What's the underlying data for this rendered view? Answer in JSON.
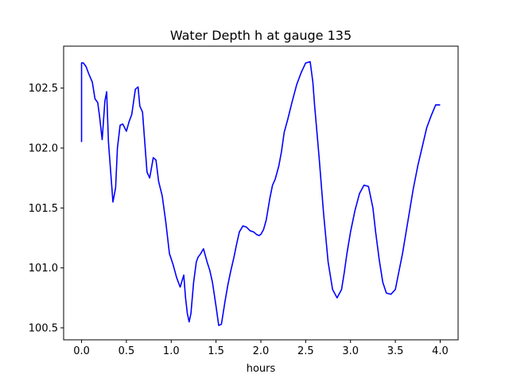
{
  "chart_data": {
    "type": "line",
    "title": "Water Depth h at gauge 135",
    "xlabel": "hours",
    "ylabel": "",
    "xlim": [
      -0.2,
      4.2
    ],
    "ylim": [
      100.4,
      102.85
    ],
    "xticks": [
      0.0,
      0.5,
      1.0,
      1.5,
      2.0,
      2.5,
      3.0,
      3.5,
      4.0
    ],
    "xtick_labels": [
      "0.0",
      "0.5",
      "1.0",
      "1.5",
      "2.0",
      "2.5",
      "3.0",
      "3.5",
      "4.0"
    ],
    "yticks": [
      100.5,
      101.0,
      101.5,
      102.0,
      102.5
    ],
    "ytick_labels": [
      "100.5",
      "101.0",
      "101.5",
      "102.0",
      "102.5"
    ],
    "grid": false,
    "series": [
      {
        "color": "#0000ff",
        "x": [
          0.0,
          0.0,
          0.02,
          0.05,
          0.08,
          0.12,
          0.15,
          0.18,
          0.2,
          0.23,
          0.26,
          0.28,
          0.3,
          0.32,
          0.35,
          0.38,
          0.4,
          0.43,
          0.46,
          0.5,
          0.53,
          0.56,
          0.6,
          0.63,
          0.65,
          0.68,
          0.7,
          0.73,
          0.76,
          0.8,
          0.83,
          0.86,
          0.9,
          0.94,
          0.98,
          1.02,
          1.06,
          1.1,
          1.14,
          1.16,
          1.18,
          1.2,
          1.22,
          1.25,
          1.28,
          1.3,
          1.33,
          1.36,
          1.4,
          1.43,
          1.46,
          1.5,
          1.53,
          1.56,
          1.6,
          1.63,
          1.66,
          1.7,
          1.73,
          1.76,
          1.8,
          1.84,
          1.88,
          1.92,
          1.95,
          1.98,
          2.0,
          2.03,
          2.06,
          2.1,
          2.13,
          2.16,
          2.2,
          2.23,
          2.26,
          2.3,
          2.35,
          2.4,
          2.45,
          2.5,
          2.55,
          2.58,
          2.6,
          2.62,
          2.65,
          2.7,
          2.75,
          2.8,
          2.85,
          2.9,
          2.93,
          2.96,
          3.0,
          3.05,
          3.1,
          3.15,
          3.2,
          3.25,
          3.28,
          3.32,
          3.36,
          3.4,
          3.45,
          3.5,
          3.54,
          3.58,
          3.62,
          3.66,
          3.7,
          3.75,
          3.8,
          3.85,
          3.9,
          3.95,
          4.0
        ],
        "y": [
          102.05,
          102.71,
          102.71,
          102.68,
          102.62,
          102.55,
          102.41,
          102.38,
          102.27,
          102.07,
          102.39,
          102.47,
          102.05,
          101.85,
          101.55,
          101.67,
          102.0,
          102.19,
          102.2,
          102.14,
          102.22,
          102.28,
          102.49,
          102.51,
          102.35,
          102.3,
          102.1,
          101.8,
          101.75,
          101.92,
          101.9,
          101.72,
          101.6,
          101.38,
          101.12,
          101.03,
          100.92,
          100.84,
          100.94,
          100.75,
          100.62,
          100.55,
          100.62,
          100.88,
          101.05,
          101.09,
          101.12,
          101.16,
          101.05,
          100.98,
          100.88,
          100.68,
          100.52,
          100.53,
          100.72,
          100.85,
          100.96,
          101.09,
          101.2,
          101.3,
          101.35,
          101.34,
          101.31,
          101.3,
          101.28,
          101.27,
          101.28,
          101.32,
          101.4,
          101.58,
          101.69,
          101.74,
          101.85,
          101.97,
          102.13,
          102.24,
          102.39,
          102.53,
          102.63,
          102.71,
          102.72,
          102.55,
          102.35,
          102.18,
          101.92,
          101.45,
          101.05,
          100.82,
          100.75,
          100.82,
          100.96,
          101.12,
          101.3,
          101.48,
          101.62,
          101.69,
          101.68,
          101.5,
          101.3,
          101.07,
          100.88,
          100.79,
          100.78,
          100.82,
          100.97,
          101.12,
          101.3,
          101.48,
          101.66,
          101.85,
          102.01,
          102.17,
          102.27,
          102.36,
          102.36
        ]
      }
    ]
  }
}
